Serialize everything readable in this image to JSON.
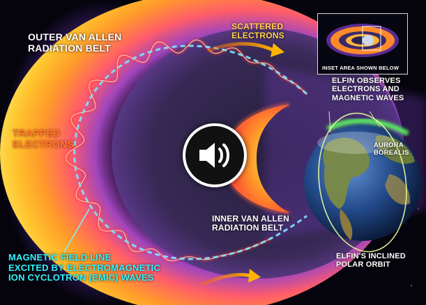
{
  "labels": {
    "outer_belt": "OUTER VAN ALLEN RADIATION BELT",
    "trapped_electrons": "TRAPPED ELECTRONS",
    "scattered_electrons": "SCATTERED ELECTRONS",
    "inner_belt": "INNER VAN ALLEN RADIATION BELT",
    "elfin_observes": "ELFIN OBSERVES ELECTRONS AND MAGNETIC WAVES",
    "aurora": "AURORA BOREALIS",
    "orbit": "ELFIN'S INCLINED POLAR ORBIT",
    "field_line": "MAGNETIC FIELD LINE EXCITED BY ELECTROMAGNETIC ION CYCLOTRON (EMIC) WAVES",
    "inset": "INSET AREA SHOWN BELOW"
  },
  "lines": {
    "outer_belt": [
      "OUTER VAN ALLEN",
      "RADIATION BELT"
    ],
    "trapped_electrons": [
      "TRAPPED",
      "ELECTRONS"
    ],
    "scattered_electrons": [
      "SCATTERED",
      "ELECTRONS"
    ],
    "inner_belt": [
      "INNER VAN ALLEN",
      "RADIATION BELT"
    ],
    "elfin_observes": [
      "ELFIN OBSERVES",
      "ELECTRONS AND",
      "MAGNETIC WAVES"
    ],
    "aurora": [
      "AURORA",
      "BOREALIS"
    ],
    "orbit": [
      "ELFIN'S INCLINED",
      "POLAR ORBIT"
    ],
    "field_line": [
      "MAGNETIC FIELD LINE",
      "EXCITED BY ELECTROMAGNETIC",
      "ION CYCLOTRON (EMIC) WAVES"
    ]
  },
  "icons": {
    "audio_button": "speaker-volume-icon"
  },
  "colors": {
    "belt_purple": "#8e4fd6",
    "belt_orange": "#ff8a1c",
    "field_line_cyan": "#7fe6ff",
    "wave_red": "#ff3020",
    "arrow_orange": "#ff9a10",
    "label_white": "#ffffff",
    "label_orange": "#ff7a2a",
    "label_cyan": "#2ff3ff",
    "label_gold": "#ffd34a"
  }
}
